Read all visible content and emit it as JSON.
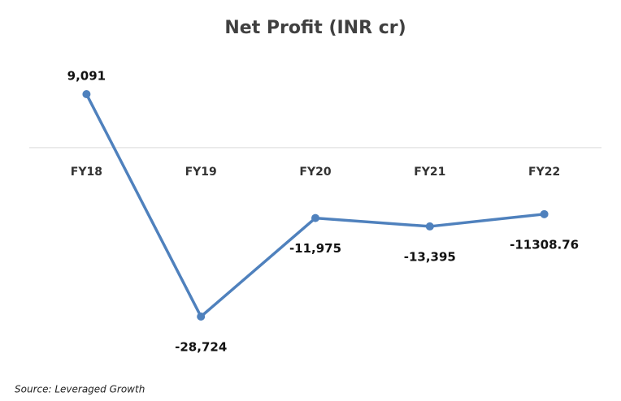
{
  "chart_data": {
    "type": "line",
    "title": "Net Profit (INR cr)",
    "categories": [
      "FY18",
      "FY19",
      "FY20",
      "FY21",
      "FY22"
    ],
    "values": [
      9091,
      -28724,
      -11975,
      -13395,
      -11308.76
    ],
    "value_labels": [
      "9,091",
      "-28,724",
      "-11,975",
      "-13,395",
      "-11308.76"
    ],
    "color": "#4f81bd",
    "source": "Source: Leveraged Growth"
  }
}
